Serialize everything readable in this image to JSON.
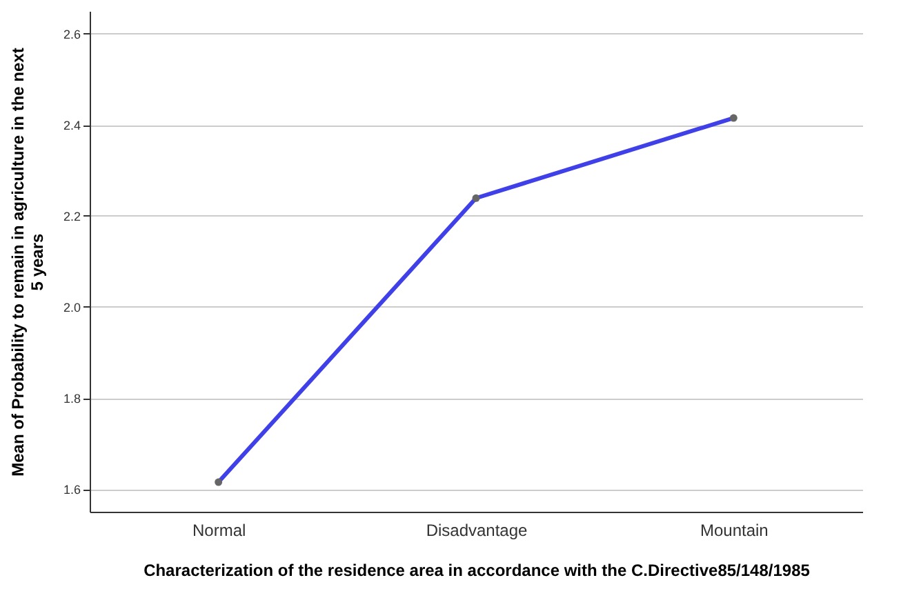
{
  "chart_data": {
    "type": "line",
    "categories": [
      "Normal",
      "Disadvantage",
      "Mountain"
    ],
    "series": [
      {
        "color": "#4040e8",
        "values": [
          1.615,
          2.239,
          2.415
        ]
      }
    ],
    "xlabel": "Characterization of the residence area in accordance with the C.Directive85/148/1985",
    "ylabel": "Mean of Probability to remain in agriculture in the next\n5 years",
    "ylim": [
      1.55,
      2.65
    ],
    "yticks": [
      {
        "value": 1.6,
        "label": "1.6"
      },
      {
        "value": 1.8,
        "label": "1.8"
      },
      {
        "value": 2.0,
        "label": "2.0"
      },
      {
        "value": 2.2,
        "label": "2.2"
      },
      {
        "value": 2.4,
        "label": "2.4"
      },
      {
        "value": 2.6,
        "label": "2.6"
      }
    ],
    "grid": "y",
    "marker": "circle",
    "line_style": "solid",
    "legend": false
  }
}
